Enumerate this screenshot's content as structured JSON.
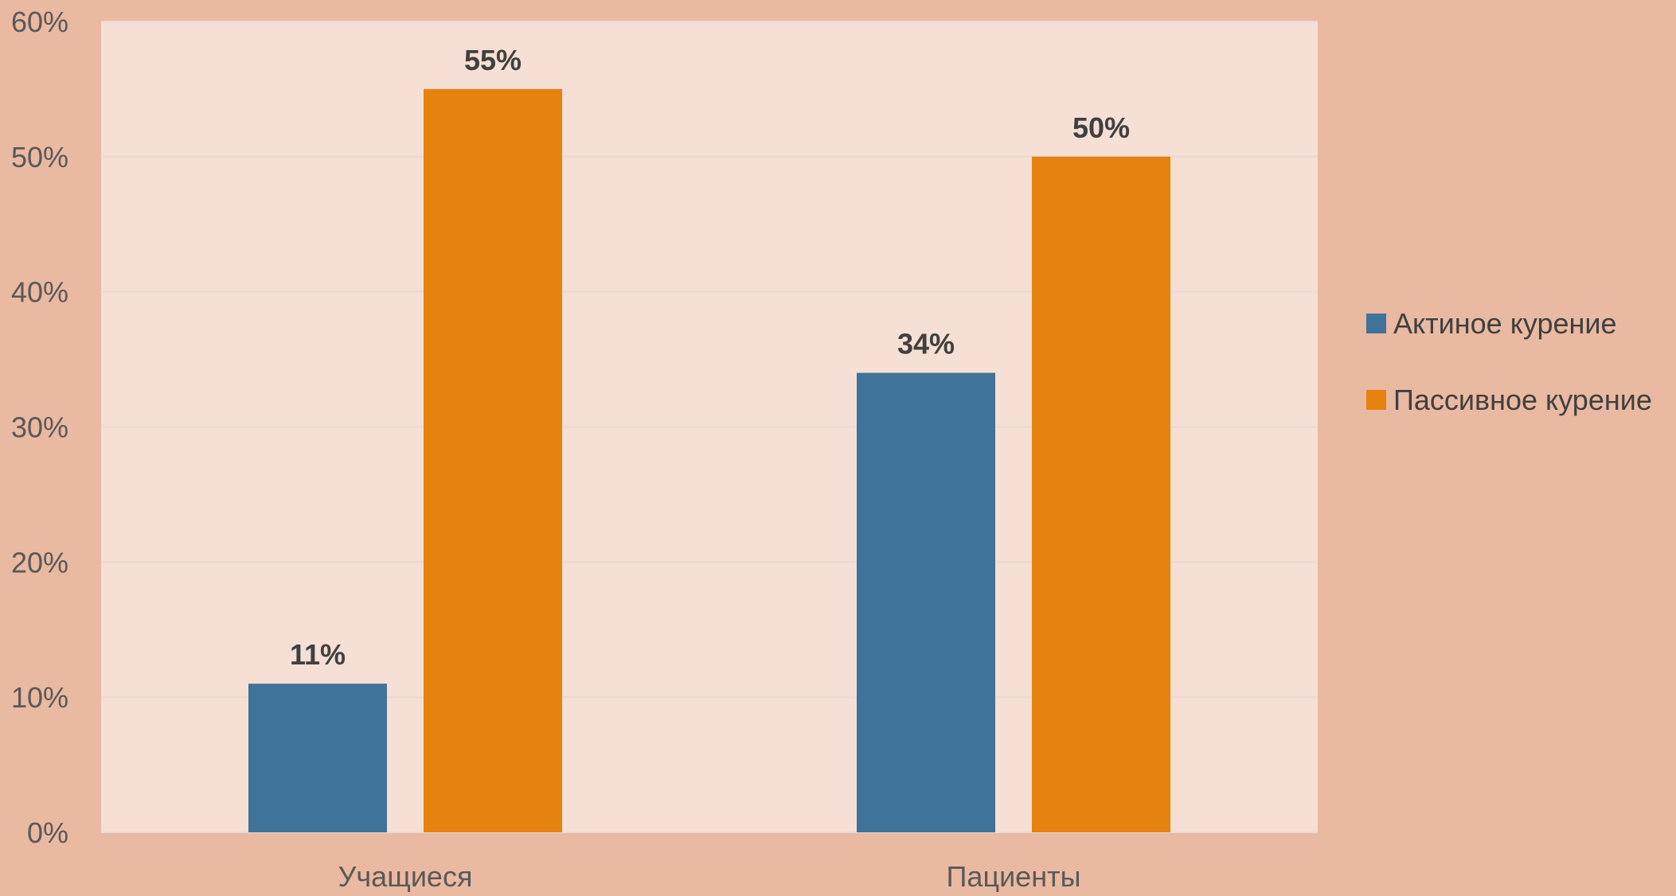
{
  "chart_data": {
    "type": "bar",
    "title": "",
    "xlabel": "",
    "ylabel": "",
    "categories": [
      "Учащиеся",
      "Пациенты"
    ],
    "series": [
      {
        "name": "Актиное курение",
        "values": [
          11,
          34
        ],
        "labels": [
          "11%",
          "34%"
        ],
        "color": "#3F7399"
      },
      {
        "name": "Пассивное курение",
        "values": [
          55,
          50
        ],
        "labels": [
          "55%",
          "50%"
        ],
        "color": "#E68210"
      }
    ],
    "ylim": [
      0,
      60
    ],
    "yticks": [
      {
        "value": 0,
        "label": "0%"
      },
      {
        "value": 10,
        "label": "10%"
      },
      {
        "value": 20,
        "label": "20%"
      },
      {
        "value": 30,
        "label": "30%"
      },
      {
        "value": 40,
        "label": "40%"
      },
      {
        "value": 50,
        "label": "50%"
      },
      {
        "value": 60,
        "label": "60%"
      }
    ],
    "grid": true,
    "legend_position": "right",
    "colors": {
      "background": "#EAB9A1",
      "plot_background": "#F6DFD4",
      "gridline": "#E9D9D6"
    }
  }
}
